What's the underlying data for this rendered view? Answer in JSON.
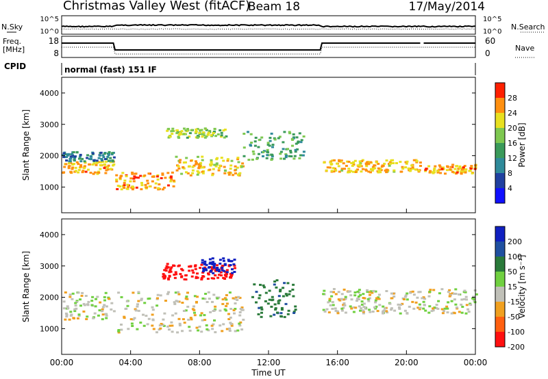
{
  "header": {
    "title": "Christmas Valley West (fitACF)",
    "beam": "Beam 18",
    "date": "17/May/2014"
  },
  "labels": {
    "nsky": "N.Sky",
    "nsearch": "N.Search",
    "freq_line1": "Freq.",
    "freq_line2": "[MHz]",
    "nave": "Nave",
    "cpid": "CPID",
    "cpid_value": "normal (fast) 151 IF",
    "xlabel": "Time UT",
    "ylabel": "Slant Range [km]"
  },
  "noise_panel": {
    "left_ticks": [
      "10^5",
      "10^0"
    ],
    "right_ticks": [
      "10^5",
      "10^0"
    ]
  },
  "freq_panel": {
    "left_ticks": [
      "18",
      "8"
    ],
    "right_ticks": [
      "60",
      "0"
    ]
  },
  "chart_data": [
    {
      "type": "heatmap",
      "name": "power",
      "xlabel": "Time UT",
      "ylabel": "Slant Range [km]",
      "xlim": [
        0,
        24
      ],
      "ylim": [
        180,
        4500
      ],
      "x_ticks": [
        "00:00",
        "04:00",
        "08:00",
        "12:00",
        "16:00",
        "20:00",
        "00:00"
      ],
      "y_ticks": [
        1000,
        2000,
        3000,
        4000
      ],
      "colorbar": {
        "label": "Power [dB]",
        "ticks": [
          "28",
          "24",
          "20",
          "16",
          "12",
          "8",
          "4"
        ],
        "range": [
          0,
          30
        ],
        "colors": [
          "#1010ff",
          "#2040a0",
          "#2f8a9a",
          "#3a9a5a",
          "#7ec850",
          "#e8e020",
          "#ff9010",
          "#ff2000"
        ]
      },
      "bands": [
        {
          "t": [
            0.0,
            3.0
          ],
          "range_km": [
            1450,
            1850
          ],
          "power_db": 27
        },
        {
          "t": [
            0.0,
            3.0
          ],
          "range_km": [
            1850,
            2150
          ],
          "power_db": 14
        },
        {
          "t": [
            3.1,
            6.5
          ],
          "range_km": [
            950,
            1500
          ],
          "power_db": 28
        },
        {
          "t": [
            6.5,
            10.5
          ],
          "range_km": [
            1400,
            2000
          ],
          "power_db": 25
        },
        {
          "t": [
            10.5,
            14.0
          ],
          "range_km": [
            1900,
            2800
          ],
          "power_db": 18
        },
        {
          "t": [
            6.0,
            9.5
          ],
          "range_km": [
            2600,
            2900
          ],
          "power_db": 22
        },
        {
          "t": [
            15.1,
            20.8
          ],
          "range_km": [
            1500,
            1900
          ],
          "power_db": 26
        },
        {
          "t": [
            21.0,
            24.0
          ],
          "range_km": [
            1450,
            1750
          ],
          "power_db": 27
        }
      ]
    },
    {
      "type": "heatmap",
      "name": "velocity",
      "xlabel": "Time UT",
      "ylabel": "Slant Range [km]",
      "xlim": [
        0,
        24
      ],
      "ylim": [
        180,
        4500
      ],
      "x_ticks": [
        "00:00",
        "04:00",
        "08:00",
        "12:00",
        "16:00",
        "20:00",
        "00:00"
      ],
      "y_ticks": [
        1000,
        2000,
        3000,
        4000
      ],
      "colorbar": {
        "label": "Velocity [m s⁻¹]",
        "ticks": [
          "200",
          "100",
          "50",
          "15",
          "-15",
          "-50",
          "-100",
          "-200"
        ],
        "colors": [
          "#1020c0",
          "#2050a0",
          "#2a7a3a",
          "#70d040",
          "#c0c0b8",
          "#f0a020",
          "#ff6010",
          "#ff1010"
        ]
      },
      "bands": [
        {
          "t": [
            0.0,
            3.0
          ],
          "range_km": [
            1300,
            2200
          ],
          "velocity": 0
        },
        {
          "t": [
            3.1,
            10.5
          ],
          "range_km": [
            900,
            2200
          ],
          "velocity": 0
        },
        {
          "t": [
            5.8,
            10.0
          ],
          "range_km": [
            2600,
            3100
          ],
          "velocity": -200
        },
        {
          "t": [
            8.0,
            10.0
          ],
          "range_km": [
            2800,
            3300
          ],
          "velocity": 180
        },
        {
          "t": [
            11.0,
            13.5
          ],
          "range_km": [
            1400,
            2600
          ],
          "velocity": 60
        },
        {
          "t": [
            15.1,
            24.0
          ],
          "range_km": [
            1500,
            2300
          ],
          "velocity": 0
        }
      ]
    }
  ]
}
